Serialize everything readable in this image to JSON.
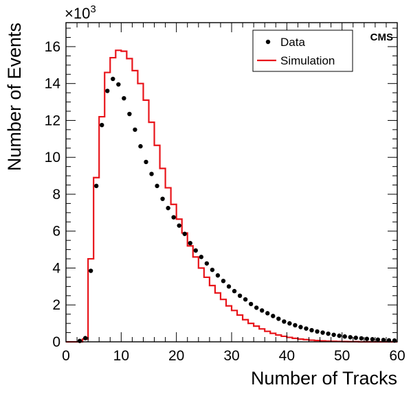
{
  "chart_data": {
    "type": "line",
    "xlabel": "Number of Tracks",
    "ylabel": "Number of Events",
    "y_multiplier_base": "×10",
    "y_multiplier_exp": "3",
    "xlim": [
      0,
      60
    ],
    "ylim": [
      0,
      17.3
    ],
    "x_ticks": [
      0,
      10,
      20,
      30,
      40,
      50,
      60
    ],
    "x_tick_labels": [
      "0",
      "10",
      "20",
      "30",
      "40",
      "50",
      "60"
    ],
    "y_ticks": [
      0,
      2,
      4,
      6,
      8,
      10,
      12,
      14,
      16
    ],
    "y_tick_labels": [
      "0",
      "2",
      "4",
      "6",
      "8",
      "10",
      "12",
      "14",
      "16"
    ],
    "legend_position": "top-right",
    "experiment_label": "CMS",
    "grid": false,
    "series": [
      {
        "name": "Data",
        "kind": "points",
        "color": "#000000",
        "x": [
          2.5,
          3.5,
          4.5,
          5.5,
          6.5,
          7.5,
          8.5,
          9.5,
          10.5,
          11.5,
          12.5,
          13.5,
          14.5,
          15.5,
          16.5,
          17.5,
          18.5,
          19.5,
          20.5,
          21.5,
          22.5,
          23.5,
          24.5,
          25.5,
          26.5,
          27.5,
          28.5,
          29.5,
          30.5,
          31.5,
          32.5,
          33.5,
          34.5,
          35.5,
          36.5,
          37.5,
          38.5,
          39.5,
          40.5,
          41.5,
          42.5,
          43.5,
          44.5,
          45.5,
          46.5,
          47.5,
          48.5,
          49.5,
          50.5,
          51.5,
          52.5,
          53.5,
          54.5,
          55.5,
          56.5,
          57.5,
          58.5,
          59.5
        ],
        "y": [
          0.05,
          0.2,
          3.85,
          8.45,
          11.75,
          13.6,
          14.25,
          13.95,
          13.2,
          12.35,
          11.5,
          10.6,
          9.75,
          9.1,
          8.45,
          7.75,
          7.25,
          6.75,
          6.3,
          5.85,
          5.35,
          4.95,
          4.6,
          4.25,
          3.9,
          3.6,
          3.3,
          3.0,
          2.75,
          2.5,
          2.3,
          2.05,
          1.85,
          1.7,
          1.55,
          1.4,
          1.25,
          1.1,
          1.0,
          0.9,
          0.8,
          0.72,
          0.63,
          0.56,
          0.5,
          0.44,
          0.38,
          0.33,
          0.29,
          0.25,
          0.22,
          0.19,
          0.16,
          0.14,
          0.12,
          0.1,
          0.08,
          0.07
        ]
      },
      {
        "name": "Simulation",
        "kind": "step",
        "color": "#e8141a",
        "edges": [
          0,
          1,
          2,
          3,
          4,
          5,
          6,
          7,
          8,
          9,
          10,
          11,
          12,
          13,
          14,
          15,
          16,
          17,
          18,
          19,
          20,
          21,
          22,
          23,
          24,
          25,
          26,
          27,
          28,
          29,
          30,
          31,
          32,
          33,
          34,
          35,
          36,
          37,
          38,
          39,
          40,
          41,
          42,
          43,
          44,
          45,
          46,
          47,
          48,
          49,
          50,
          51,
          52,
          53,
          54,
          55,
          56,
          57,
          58,
          59,
          60
        ],
        "y": [
          0.0,
          0.0,
          0.0,
          0.15,
          4.5,
          8.9,
          12.2,
          14.6,
          15.4,
          15.8,
          15.75,
          15.35,
          14.7,
          14.0,
          13.1,
          11.9,
          10.65,
          9.4,
          8.35,
          7.45,
          6.65,
          5.9,
          5.2,
          4.6,
          4.0,
          3.5,
          3.05,
          2.65,
          2.3,
          1.95,
          1.7,
          1.45,
          1.2,
          1.0,
          0.85,
          0.7,
          0.57,
          0.46,
          0.37,
          0.3,
          0.24,
          0.19,
          0.15,
          0.12,
          0.09,
          0.07,
          0.05,
          0.04,
          0.03,
          0.02,
          0.015,
          0.01,
          0.01,
          0.0,
          0.0,
          0.0,
          0.0,
          0.0,
          0.0,
          0.0
        ]
      }
    ]
  }
}
